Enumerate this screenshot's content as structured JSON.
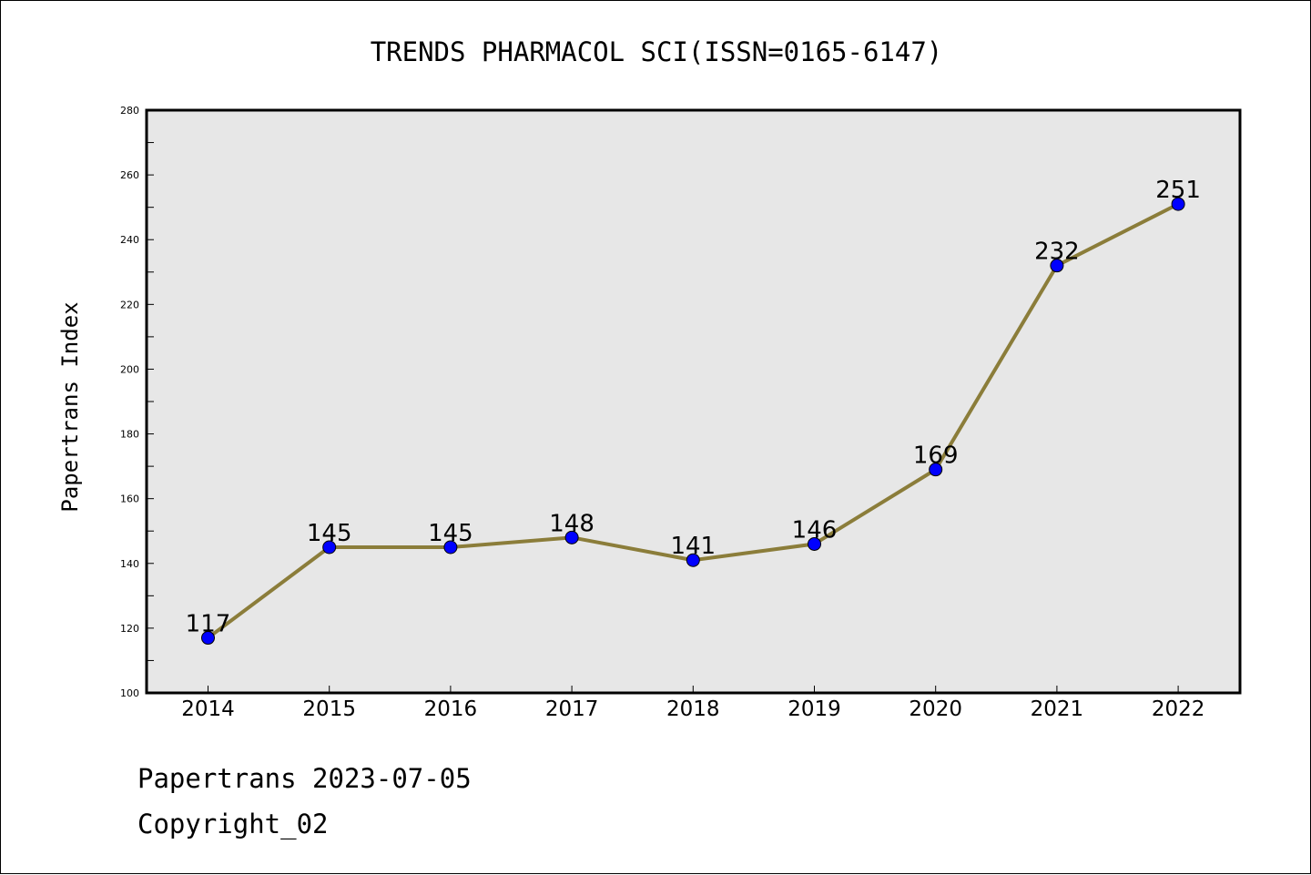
{
  "chart_data": {
    "type": "line",
    "title": "TRENDS PHARMACOL SCI(ISSN=0165-6147)",
    "xlabel": "",
    "ylabel": "Papertrans Index",
    "categories": [
      "2014",
      "2015",
      "2016",
      "2017",
      "2018",
      "2019",
      "2020",
      "2021",
      "2022"
    ],
    "values": [
      117,
      145,
      145,
      148,
      141,
      146,
      169,
      232,
      251
    ],
    "data_labels": [
      "117",
      "145",
      "145",
      "148",
      "141",
      "146",
      "169",
      "232",
      "251"
    ],
    "ylim": [
      100,
      280
    ],
    "yticks": [
      "100",
      "120",
      "140",
      "160",
      "180",
      "200",
      "220",
      "240",
      "260",
      "280"
    ],
    "grid": false,
    "colors": {
      "line": "#8b7d3a",
      "marker": "#0000ff",
      "plot_background": "#e7e7e7"
    }
  },
  "footer": {
    "date_line": "Papertrans 2023-07-05",
    "copyright_line": "Copyright_02"
  }
}
